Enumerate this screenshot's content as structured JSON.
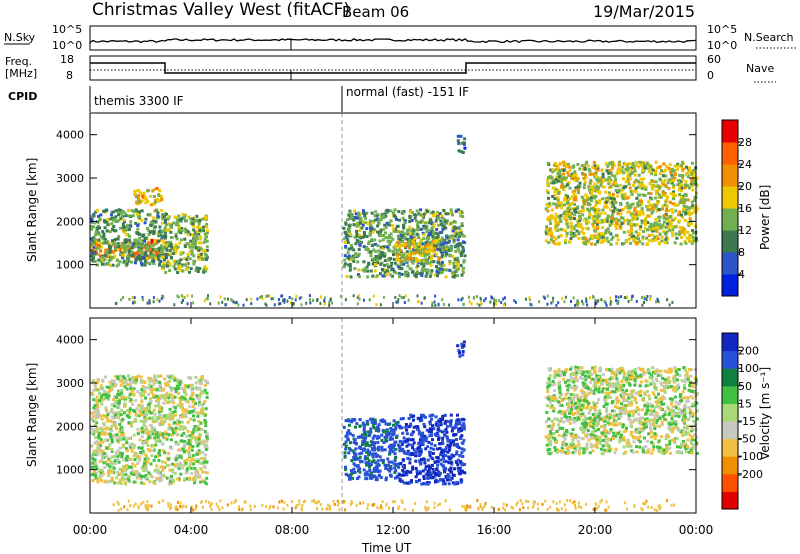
{
  "header": {
    "title": "Christmas Valley West (fitACF)",
    "beam": "Beam 06",
    "date": "19/Mar/2015"
  },
  "summary": {
    "nsky_label": "N.Sky",
    "nsky_ticks": [
      "10^5",
      "10^0"
    ],
    "right_ticks": [
      "10^5",
      "10^0"
    ],
    "nsearch_label": "N.Search",
    "freq_label_1": "Freq.",
    "freq_label_2": "[MHz]",
    "freq_ticks": [
      "18",
      "8"
    ],
    "nave_ticks": [
      "60",
      "0"
    ],
    "nave_label": "Nave",
    "cpid_label": "CPID",
    "cpid_segments": [
      "themis 3300 IF",
      "normal (fast) -151 IF"
    ]
  },
  "axes": {
    "x_ticks": [
      "00:00",
      "04:00",
      "08:00",
      "12:00",
      "16:00",
      "20:00",
      "00:00"
    ],
    "xlabel": "Time UT",
    "y_ticks": [
      "1000",
      "2000",
      "3000",
      "4000"
    ],
    "ylabel": "Slant Range [km]"
  },
  "power_scale": {
    "label": "Power [dB]",
    "ticks": [
      "4",
      "8",
      "12",
      "16",
      "20",
      "24",
      "28"
    ],
    "colors": [
      "#0020e0",
      "#2a54c8",
      "#3c7850",
      "#70b050",
      "#f0c800",
      "#f09000",
      "#ff6000",
      "#e80000"
    ]
  },
  "velocity_scale": {
    "label": "Velocity [m s⁻¹]",
    "ticks": [
      "200",
      "100",
      "50",
      "15",
      "-15",
      "-50",
      "-100",
      "-200"
    ],
    "colors": [
      "#1028c0",
      "#2850d8",
      "#108040",
      "#40c040",
      "#a8d878",
      "#c8c8c0",
      "#f0c040",
      "#f09000",
      "#ff5000",
      "#e00000"
    ]
  },
  "chart_data": [
    {
      "type": "heatmap",
      "panel": "power",
      "xlabel": "Time UT",
      "ylabel": "Slant Range [km]",
      "x_range_hours": [
        0,
        24
      ],
      "ylim": [
        0,
        4500
      ],
      "colorbar_label": "Power [dB]",
      "colorbar_ticks": [
        4,
        8,
        12,
        16,
        20,
        24,
        28
      ],
      "echo_regions": [
        {
          "t_start": 0.0,
          "t_end": 3.0,
          "range_start": 1200,
          "range_end": 1600,
          "power_db": 24
        },
        {
          "t_start": 0.0,
          "t_end": 3.0,
          "range_start": 1000,
          "range_end": 2300,
          "power_db": 12
        },
        {
          "t_start": 1.7,
          "t_end": 2.8,
          "range_start": 2400,
          "range_end": 2800,
          "power_db": 20
        },
        {
          "t_start": 2.8,
          "t_end": 4.6,
          "range_start": 850,
          "range_end": 2200,
          "power_db": 14
        },
        {
          "t_start": 10.0,
          "t_end": 14.8,
          "range_start": 750,
          "range_end": 2300,
          "power_db": 12
        },
        {
          "t_start": 12.0,
          "t_end": 13.8,
          "range_start": 1100,
          "range_end": 1600,
          "power_db": 18
        },
        {
          "t_start": 14.5,
          "t_end": 14.8,
          "range_start": 3600,
          "range_end": 4000,
          "power_db": 8
        },
        {
          "t_start": 18.0,
          "t_end": 24.0,
          "range_start": 1500,
          "range_end": 3400,
          "power_db": 16
        }
      ]
    },
    {
      "type": "heatmap",
      "panel": "velocity",
      "xlabel": "Time UT",
      "ylabel": "Slant Range [km]",
      "x_range_hours": [
        0,
        24
      ],
      "ylim": [
        0,
        4500
      ],
      "colorbar_label": "Velocity [m s⁻¹]",
      "colorbar_ticks": [
        200,
        100,
        50,
        15,
        -15,
        -50,
        -100,
        -200
      ],
      "echo_regions": [
        {
          "t_start": 0.0,
          "t_end": 4.6,
          "range_start": 700,
          "range_end": 3200,
          "velocity": 0
        },
        {
          "t_start": 10.0,
          "t_end": 12.2,
          "range_start": 800,
          "range_end": 2200,
          "velocity": 120
        },
        {
          "t_start": 12.2,
          "t_end": 14.8,
          "range_start": 700,
          "range_end": 2300,
          "velocity": 200
        },
        {
          "t_start": 14.5,
          "t_end": 14.8,
          "range_start": 3600,
          "range_end": 4000,
          "velocity": 200
        },
        {
          "t_start": 18.0,
          "t_end": 24.0,
          "range_start": 1400,
          "range_end": 3400,
          "velocity": 0
        }
      ]
    }
  ]
}
